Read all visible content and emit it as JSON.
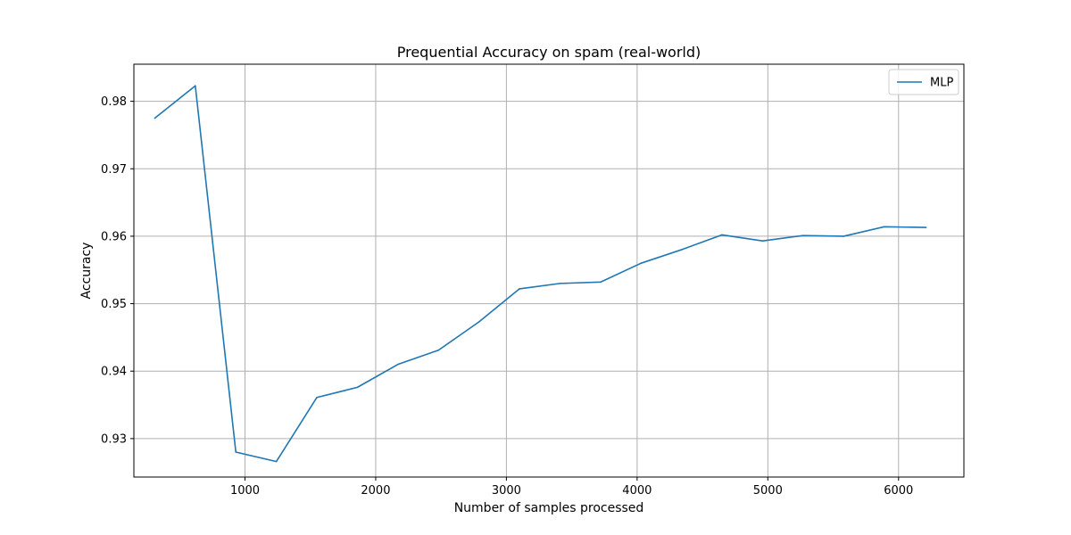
{
  "chart_data": {
    "type": "line",
    "title": "Prequential Accuracy on spam (real-world)",
    "xlabel": "Number of samples processed",
    "ylabel": "Accuracy",
    "xlim": [
      150,
      6500
    ],
    "ylim": [
      0.9243,
      0.9855
    ],
    "xticks": [
      1000,
      2000,
      3000,
      4000,
      5000,
      6000
    ],
    "xtick_labels": [
      "1000",
      "2000",
      "3000",
      "4000",
      "5000",
      "6000"
    ],
    "yticks": [
      0.93,
      0.94,
      0.95,
      0.96,
      0.97,
      0.98
    ],
    "ytick_labels": [
      "0.93",
      "0.94",
      "0.95",
      "0.96",
      "0.97",
      "0.98"
    ],
    "grid": true,
    "legend_position": "top-right",
    "series": [
      {
        "name": "MLP",
        "color": "#1f77b4",
        "x": [
          310,
          620,
          930,
          1240,
          1550,
          1860,
          2170,
          2480,
          2790,
          3100,
          3410,
          3720,
          4030,
          4340,
          4650,
          4960,
          5270,
          5580,
          5890,
          6210
        ],
        "y": [
          0.9775,
          0.9823,
          0.928,
          0.9266,
          0.9361,
          0.9376,
          0.941,
          0.9431,
          0.9473,
          0.9522,
          0.953,
          0.9532,
          0.956,
          0.958,
          0.9602,
          0.9593,
          0.9601,
          0.96,
          0.9614,
          0.9613
        ]
      }
    ]
  }
}
